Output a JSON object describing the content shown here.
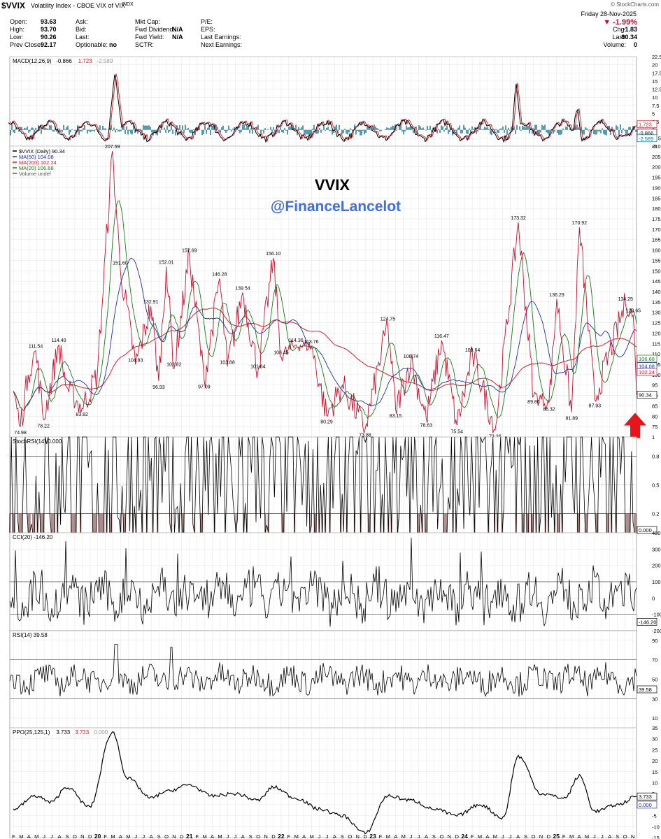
{
  "header": {
    "symbol": "$VVIX",
    "name": "Volatility Index - CBOE VIX of VIX",
    "exchange": "INDX",
    "credit": "© StockCharts.com",
    "date": "Friday   28-Nov-2025",
    "change_pct": "▼ -1.99%",
    "left_fields": [
      {
        "label": "Open:",
        "value": "93.63"
      },
      {
        "label": "High:",
        "value": "93.70"
      },
      {
        "label": "Low:",
        "value": "90.26"
      },
      {
        "label": "Prev Close:",
        "value": "92.17"
      }
    ],
    "mid_fields": [
      {
        "label": "Ask:",
        "value": ""
      },
      {
        "label": "Bid:",
        "value": ""
      },
      {
        "label": "Last:",
        "value": ""
      },
      {
        "label": "Optionable:",
        "value": "no"
      }
    ],
    "mid2_fields": [
      {
        "label": "Mkt Cap:",
        "value": ""
      },
      {
        "label": "Fwd Dividend:",
        "value": "N/A"
      },
      {
        "label": "Fwd Yield:",
        "value": "N/A"
      },
      {
        "label": "SCTR:",
        "value": ""
      }
    ],
    "right_labels": [
      "P/E:",
      "EPS:",
      "Last Earnings:",
      "Next Earnings:"
    ],
    "far_right": [
      {
        "label": "Chg:",
        "value": "-1.83"
      },
      {
        "label": "Last:",
        "value": "90.34"
      },
      {
        "label": "Volume:",
        "value": "0"
      }
    ]
  },
  "watermark": {
    "title": "VVIX",
    "handle": "@FinanceLancelot"
  },
  "colors": {
    "price": "#c8102e",
    "ma50": "#1f2fa6",
    "ma200": "#d81e2a",
    "ma20": "#1a7a1a",
    "macd_hist": "#0f7090",
    "stoch_fill": "#8a5a5a",
    "arrow": "#e8141a",
    "grid": "#e4e4e4"
  },
  "chart_data": [
    {
      "panel": "macd",
      "type": "line",
      "legend": [
        "MACD(12,26,9)",
        "-0.866",
        "1.723",
        "-2.589"
      ],
      "ylim": [
        -5,
        22.5
      ],
      "yticks": [
        -5,
        -2.5,
        0,
        2.5,
        5,
        7.5,
        10,
        12.5,
        15,
        17.5,
        20,
        22.5
      ],
      "right_labels": [
        "1.723",
        "-0.866",
        "-2.589"
      ]
    },
    {
      "panel": "price",
      "type": "line",
      "legend": [
        {
          "name": "$VVIX (Daily) 90.34"
        },
        {
          "name": "MA(50) 104.08"
        },
        {
          "name": "MA(200) 102.24"
        },
        {
          "name": "MA(20) 106.68"
        },
        {
          "name": "Volume undef"
        }
      ],
      "ylim": [
        70,
        210
      ],
      "yticks": [
        75,
        80,
        85,
        90,
        95,
        100,
        105,
        110,
        115,
        120,
        125,
        130,
        135,
        140,
        145,
        150,
        155,
        160,
        165,
        170,
        175,
        180,
        185,
        190,
        195,
        200,
        205,
        210
      ],
      "right_labels": [
        "106.68",
        "104.08",
        "102.24",
        "90.34"
      ],
      "x_range": [
        "2019-02",
        "2025-11"
      ],
      "points": [
        {
          "date": "2019-02",
          "value": 92
        },
        {
          "date": "2019-03",
          "value": 74.98
        },
        {
          "date": "2019-04",
          "value": 100
        },
        {
          "date": "2019-05",
          "value": 111.54
        },
        {
          "date": "2019-06",
          "value": 78.22
        },
        {
          "date": "2019-08",
          "value": 114.4
        },
        {
          "date": "2019-09",
          "value": 94
        },
        {
          "date": "2019-11",
          "value": 83.82
        },
        {
          "date": "2020-01",
          "value": 100
        },
        {
          "date": "2020-03",
          "value": 207.59
        },
        {
          "date": "2020-04",
          "value": 151.6
        },
        {
          "date": "2020-06",
          "value": 104.83
        },
        {
          "date": "2020-08",
          "value": 132.91
        },
        {
          "date": "2020-09",
          "value": 96.93
        },
        {
          "date": "2020-10",
          "value": 152.01
        },
        {
          "date": "2020-11",
          "value": 102.82
        },
        {
          "date": "2021-01",
          "value": 157.69
        },
        {
          "date": "2021-03",
          "value": 97.09
        },
        {
          "date": "2021-05",
          "value": 146.28
        },
        {
          "date": "2021-06",
          "value": 103.88
        },
        {
          "date": "2021-08",
          "value": 139.54
        },
        {
          "date": "2021-10",
          "value": 101.84
        },
        {
          "date": "2021-12",
          "value": 156.1
        },
        {
          "date": "2022-01",
          "value": 108.45
        },
        {
          "date": "2022-03",
          "value": 114.36
        },
        {
          "date": "2022-05",
          "value": 113.76
        },
        {
          "date": "2022-07",
          "value": 80.29
        },
        {
          "date": "2022-09",
          "value": 95
        },
        {
          "date": "2022-12",
          "value": 73.88
        },
        {
          "date": "2023-03",
          "value": 124.75
        },
        {
          "date": "2023-04",
          "value": 83.15
        },
        {
          "date": "2023-06",
          "value": 106.74
        },
        {
          "date": "2023-08",
          "value": 78.63
        },
        {
          "date": "2023-10",
          "value": 116.47
        },
        {
          "date": "2023-12",
          "value": 75.54
        },
        {
          "date": "2024-02",
          "value": 109.64
        },
        {
          "date": "2024-05",
          "value": 73.26
        },
        {
          "date": "2024-08",
          "value": 173.32
        },
        {
          "date": "2024-10",
          "value": 89.86
        },
        {
          "date": "2024-12",
          "value": 86.32
        },
        {
          "date": "2025-01",
          "value": 136.29
        },
        {
          "date": "2025-03",
          "value": 81.89
        },
        {
          "date": "2025-04",
          "value": 170.92
        },
        {
          "date": "2025-06",
          "value": 87.93
        },
        {
          "date": "2025-10",
          "value": 134.25
        },
        {
          "date": "2025-11",
          "value": 128.65
        },
        {
          "date": "2025-11-28",
          "value": 90.34
        }
      ],
      "peak_labels": [
        {
          "date": "2019-03",
          "text": "74.98"
        },
        {
          "date": "2019-05",
          "text": "111.54"
        },
        {
          "date": "2019-06",
          "text": "78.22"
        },
        {
          "date": "2019-08",
          "text": "114.40"
        },
        {
          "date": "2019-11",
          "text": "83.82"
        },
        {
          "date": "2020-03",
          "text": "207.59"
        },
        {
          "date": "2020-04",
          "text": "151.60"
        },
        {
          "date": "2020-06",
          "text": "104.83"
        },
        {
          "date": "2020-08",
          "text": "132.91"
        },
        {
          "date": "2020-09",
          "text": "96.93"
        },
        {
          "date": "2020-10",
          "text": "152.01"
        },
        {
          "date": "2020-11",
          "text": "102.82"
        },
        {
          "date": "2021-01",
          "text": "157.69"
        },
        {
          "date": "2021-03",
          "text": "97.09"
        },
        {
          "date": "2021-05",
          "text": "146.28"
        },
        {
          "date": "2021-06",
          "text": "103.88"
        },
        {
          "date": "2021-08",
          "text": "139.54"
        },
        {
          "date": "2021-10",
          "text": "101.84"
        },
        {
          "date": "2021-12",
          "text": "156.10"
        },
        {
          "date": "2022-01",
          "text": "108.45"
        },
        {
          "date": "2022-03",
          "text": "114.36"
        },
        {
          "date": "2022-05",
          "text": "113.76"
        },
        {
          "date": "2022-07",
          "text": "80.29"
        },
        {
          "date": "2022-12",
          "text": "73.88"
        },
        {
          "date": "2023-03",
          "text": "124.75"
        },
        {
          "date": "2023-04",
          "text": "83.15"
        },
        {
          "date": "2023-06",
          "text": "106.74"
        },
        {
          "date": "2023-08",
          "text": "78.63"
        },
        {
          "date": "2023-10",
          "text": "116.47"
        },
        {
          "date": "2023-12",
          "text": "75.54"
        },
        {
          "date": "2024-02",
          "text": "109.64"
        },
        {
          "date": "2024-05",
          "text": "73.26"
        },
        {
          "date": "2024-08",
          "text": "173.32"
        },
        {
          "date": "2024-10",
          "text": "89.86"
        },
        {
          "date": "2024-12",
          "text": "86.32"
        },
        {
          "date": "2025-01",
          "text": "136.29"
        },
        {
          "date": "2025-03",
          "text": "81.89"
        },
        {
          "date": "2025-04",
          "text": "170.92"
        },
        {
          "date": "2025-06",
          "text": "87.93"
        },
        {
          "date": "2025-10",
          "text": "134.25"
        },
        {
          "date": "2025-11",
          "text": "128.65"
        }
      ],
      "arrows": [
        {
          "date": "2025-03",
          "value": 81.89
        },
        {
          "date": "2025-11-28",
          "value": 90.34
        }
      ],
      "month_labels": [
        "F",
        "M",
        "A",
        "M",
        "J",
        "J",
        "A",
        "S",
        "O",
        "N",
        "D",
        "20",
        "F",
        "M",
        "A",
        "M",
        "J",
        "J",
        "A",
        "S",
        "O",
        "N",
        "D",
        "21",
        "F",
        "M",
        "A",
        "M",
        "J",
        "J",
        "A",
        "S",
        "O",
        "N",
        "D",
        "22",
        "F",
        "M",
        "A",
        "M",
        "J",
        "J",
        "A",
        "S",
        "O",
        "N",
        "D",
        "23",
        "F",
        "M",
        "A",
        "M",
        "J",
        "J",
        "A",
        "S",
        "O",
        "N",
        "D",
        "24",
        "F",
        "M",
        "A",
        "M",
        "J",
        "J",
        "A",
        "S",
        "O",
        "N",
        "D",
        "25",
        "F",
        "M",
        "A",
        "M",
        "J",
        "J",
        "A",
        "S",
        "O",
        "N"
      ]
    },
    {
      "panel": "stochrsi",
      "type": "line",
      "legend": "StochRSI(14) 0.000",
      "ylim": [
        0,
        1
      ],
      "yticks": [
        0.2,
        0.5,
        0.8,
        1.0
      ],
      "right_labels": [
        "0.000"
      ]
    },
    {
      "panel": "cci",
      "type": "line",
      "legend": "CCI(20) -146.20",
      "ylim": [
        -200,
        400
      ],
      "yticks": [
        -200,
        -100,
        0,
        100,
        200,
        300,
        400
      ],
      "right_labels": [
        "-146.20"
      ]
    },
    {
      "panel": "rsi",
      "type": "line",
      "legend": "RSI(14) 39.58",
      "ylim": [
        0,
        100
      ],
      "yticks": [
        10,
        30,
        50,
        70,
        90
      ],
      "right_labels": [
        "39.58"
      ]
    },
    {
      "panel": "ppo",
      "type": "line",
      "legend": [
        "PPO(25,125,1)",
        "3.733",
        "3.733",
        "0.000"
      ],
      "ylim": [
        -15,
        35
      ],
      "yticks": [
        -15,
        -10,
        -5,
        0,
        5,
        10,
        15,
        20,
        25,
        30,
        35
      ],
      "right_labels": [
        "3.733",
        "0.000"
      ],
      "points": [
        {
          "date": "2019-02",
          "value": -2
        },
        {
          "date": "2019-05",
          "value": 4
        },
        {
          "date": "2019-07",
          "value": 1
        },
        {
          "date": "2019-09",
          "value": 8
        },
        {
          "date": "2019-12",
          "value": -1
        },
        {
          "date": "2020-03",
          "value": 33
        },
        {
          "date": "2020-05",
          "value": 12
        },
        {
          "date": "2020-08",
          "value": 3
        },
        {
          "date": "2020-10",
          "value": 6
        },
        {
          "date": "2021-01",
          "value": 9
        },
        {
          "date": "2021-04",
          "value": 4
        },
        {
          "date": "2021-07",
          "value": 5
        },
        {
          "date": "2021-10",
          "value": 2
        },
        {
          "date": "2021-12",
          "value": 8
        },
        {
          "date": "2022-03",
          "value": 3
        },
        {
          "date": "2022-06",
          "value": -2
        },
        {
          "date": "2022-09",
          "value": -5
        },
        {
          "date": "2022-12",
          "value": -13
        },
        {
          "date": "2023-03",
          "value": 4
        },
        {
          "date": "2023-06",
          "value": 2
        },
        {
          "date": "2023-09",
          "value": -2
        },
        {
          "date": "2023-12",
          "value": -5
        },
        {
          "date": "2024-03",
          "value": 0
        },
        {
          "date": "2024-06",
          "value": -6
        },
        {
          "date": "2024-08",
          "value": 22
        },
        {
          "date": "2024-11",
          "value": 5
        },
        {
          "date": "2025-02",
          "value": 3
        },
        {
          "date": "2025-04",
          "value": 13
        },
        {
          "date": "2025-06",
          "value": -3
        },
        {
          "date": "2025-09",
          "value": 0
        },
        {
          "date": "2025-11-28",
          "value": 3.733
        }
      ]
    }
  ]
}
